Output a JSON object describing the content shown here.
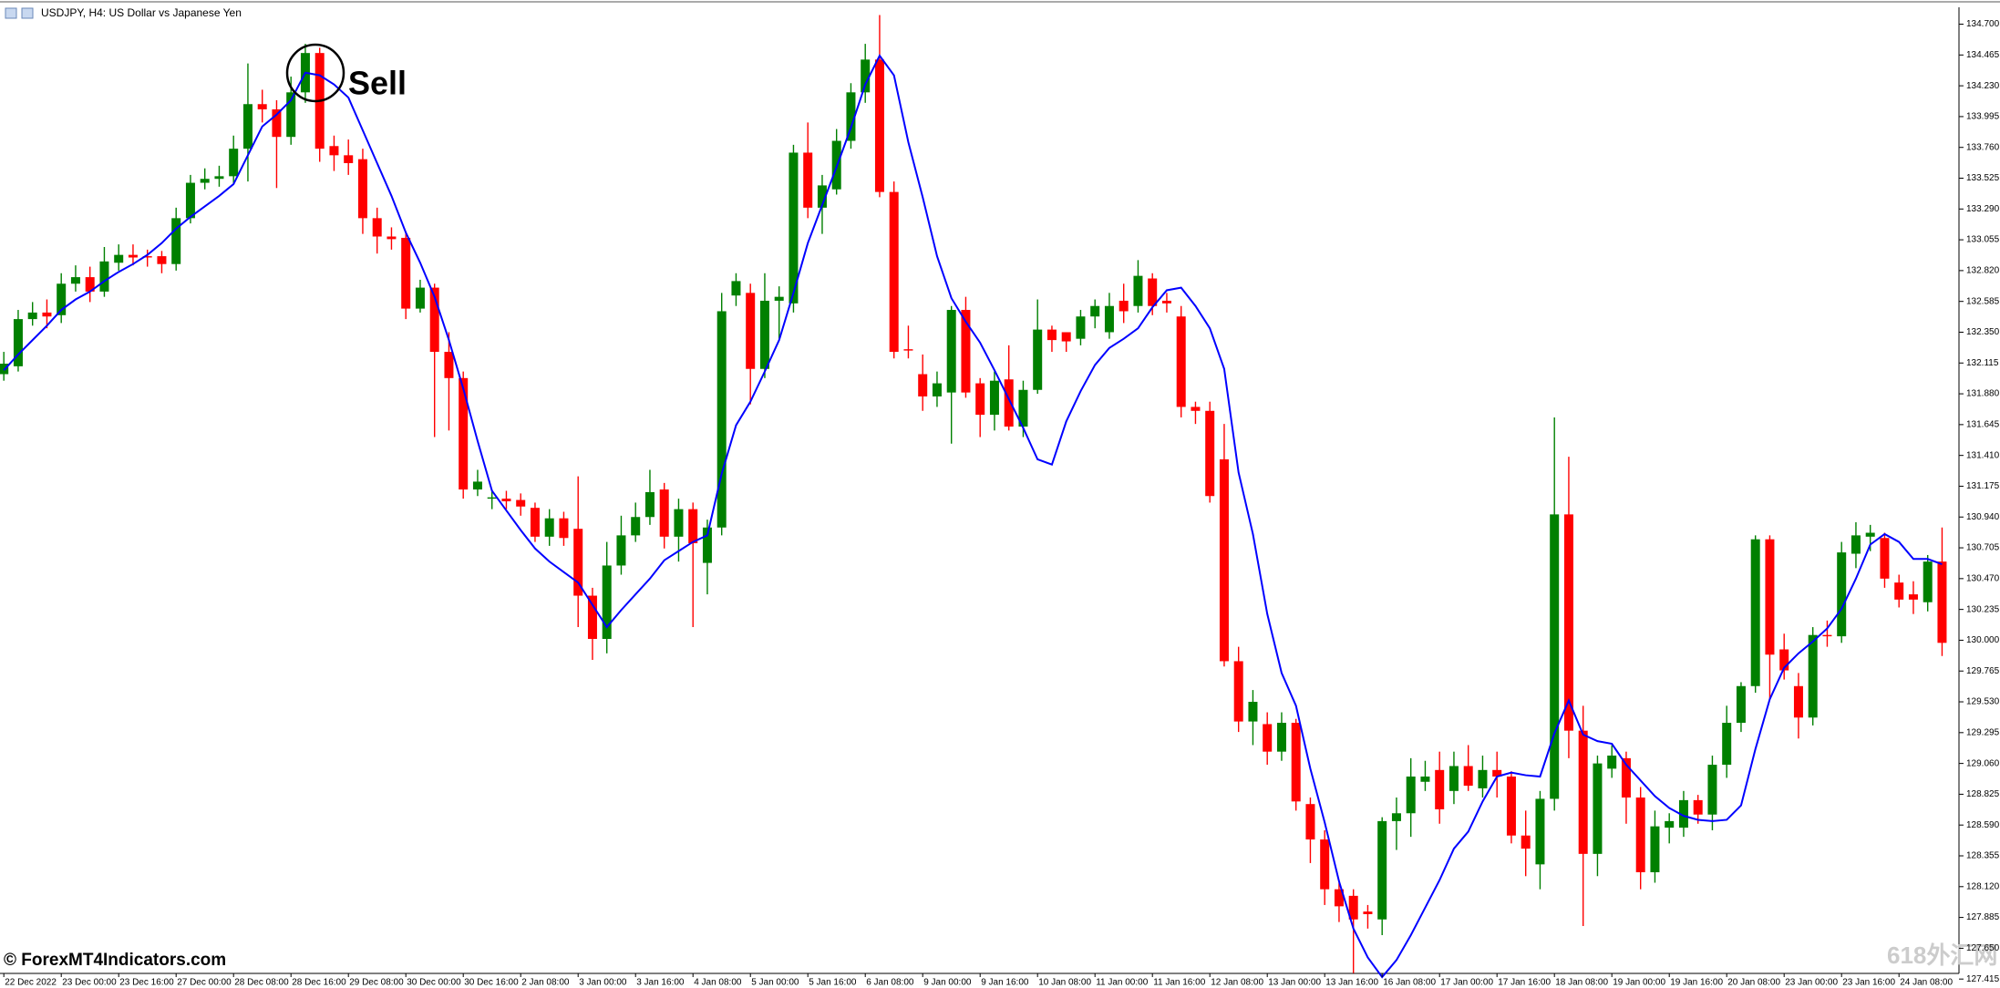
{
  "chart_data": {
    "type": "candlestick",
    "title": "USDJPY, H4:  US Dollar vs Japanese Yen",
    "annotation": "Sell",
    "copyright": "© ForexMT4Indicators.com",
    "watermark": "618外汇网",
    "up_color": "#008000",
    "down_color": "#ff0000",
    "grid": false,
    "categories": [
      "22 Dec 2022",
      null,
      null,
      null,
      "23 Dec 00:00",
      null,
      null,
      null,
      "23 Dec 16:00",
      null,
      null,
      null,
      "27 Dec 00:00",
      null,
      null,
      null,
      "28 Dec 08:00",
      null,
      null,
      null,
      "28 Dec 16:00",
      null,
      null,
      null,
      "29 Dec 08:00",
      null,
      null,
      null,
      "30 Dec 00:00",
      null,
      null,
      null,
      "30 Dec 16:00",
      null,
      null,
      null,
      "2 Jan 08:00",
      null,
      null,
      null,
      "3 Jan 00:00",
      null,
      null,
      null,
      "3 Jan 16:00",
      null,
      null,
      null,
      "4 Jan 08:00",
      null,
      null,
      null,
      "5 Jan 00:00",
      null,
      null,
      null,
      "5 Jan 16:00",
      null,
      null,
      null,
      "6 Jan 08:00",
      null,
      null,
      null,
      "9 Jan 00:00",
      null,
      null,
      null,
      "9 Jan 16:00",
      null,
      null,
      null,
      "10 Jan 08:00",
      null,
      null,
      null,
      "11 Jan 00:00",
      null,
      null,
      null,
      "11 Jan 16:00",
      null,
      null,
      null,
      "12 Jan 08:00",
      null,
      null,
      null,
      "13 Jan 00:00",
      null,
      null,
      null,
      "13 Jan 16:00",
      null,
      null,
      null,
      "16 Jan 08:00",
      null,
      null,
      null,
      "17 Jan 00:00",
      null,
      null,
      null,
      "17 Jan 16:00",
      null,
      null,
      null,
      "18 Jan 08:00",
      null,
      null,
      null,
      "19 Jan 00:00",
      null,
      null,
      null,
      "19 Jan 16:00",
      null,
      null,
      null,
      "20 Jan 08:00",
      null,
      null,
      null,
      "23 Jan 00:00",
      null,
      null,
      null,
      "23 Jan 16:00",
      null,
      null,
      null,
      "24 Jan 08:00",
      null,
      null,
      null
    ],
    "open": [
      132.03,
      132.09,
      132.45,
      132.5,
      132.48,
      132.72,
      132.77,
      132.66,
      132.88,
      132.94,
      132.93,
      132.93,
      132.87,
      133.22,
      133.49,
      133.52,
      133.54,
      133.75,
      134.09,
      134.05,
      133.84,
      134.18,
      134.48,
      133.77,
      133.7,
      133.67,
      133.22,
      133.08,
      133.07,
      132.53,
      132.69,
      132.2,
      132.0,
      131.15,
      131.08,
      131.08,
      131.07,
      131.01,
      130.79,
      130.93,
      130.85,
      130.34,
      130.01,
      130.57,
      130.8,
      130.94,
      131.15,
      130.79,
      131.0,
      130.59,
      130.86,
      132.63,
      132.65,
      132.07,
      132.59,
      132.57,
      133.72,
      133.3,
      133.44,
      133.81,
      134.18,
      134.43,
      133.42,
      132.22,
      132.03,
      131.86,
      131.89,
      132.52,
      131.96,
      131.72,
      131.99,
      131.63,
      131.91,
      132.37,
      132.35,
      132.3,
      132.47,
      132.35,
      132.59,
      132.55,
      132.76,
      132.59,
      132.47,
      131.78,
      131.75,
      131.38,
      129.84,
      129.38,
      129.36,
      129.15,
      129.37,
      128.75,
      128.48,
      128.1,
      128.05,
      127.93,
      127.87,
      128.62,
      128.68,
      128.92,
      129.01,
      128.85,
      129.04,
      128.87,
      129.01,
      128.96,
      128.51,
      128.29,
      128.79,
      130.96,
      129.31,
      128.37,
      129.02,
      129.1,
      128.8,
      128.23,
      128.57,
      128.57,
      128.78,
      128.67,
      129.05,
      129.37,
      129.65,
      130.77,
      129.93,
      129.65,
      129.41,
      130.04,
      130.03,
      130.66,
      130.79,
      130.78,
      130.44,
      130.35,
      130.29,
      130.6
    ],
    "high": [
      132.2,
      132.52,
      132.58,
      132.6,
      132.8,
      132.86,
      132.85,
      133.0,
      133.02,
      133.02,
      132.98,
      132.97,
      133.3,
      133.55,
      133.6,
      133.62,
      133.85,
      134.4,
      134.2,
      134.12,
      134.3,
      134.55,
      134.52,
      133.85,
      133.82,
      133.75,
      133.3,
      133.15,
      133.12,
      132.75,
      132.72,
      132.35,
      132.05,
      131.3,
      131.15,
      131.14,
      131.12,
      131.05,
      131.0,
      130.98,
      131.25,
      130.4,
      130.75,
      130.95,
      131.05,
      131.3,
      131.2,
      131.08,
      131.05,
      130.92,
      132.65,
      132.8,
      132.72,
      132.8,
      132.7,
      133.78,
      133.95,
      133.55,
      133.9,
      134.25,
      134.55,
      134.77,
      133.5,
      132.4,
      132.18,
      132.05,
      132.55,
      132.62,
      132.0,
      132.05,
      132.25,
      131.98,
      132.6,
      132.4,
      132.35,
      132.52,
      132.6,
      132.65,
      132.72,
      132.9,
      132.8,
      132.65,
      132.55,
      131.82,
      131.82,
      131.65,
      129.95,
      129.62,
      129.45,
      129.45,
      129.4,
      128.8,
      128.55,
      128.15,
      128.1,
      127.98,
      128.65,
      128.8,
      129.1,
      129.08,
      129.15,
      129.15,
      129.2,
      129.12,
      129.15,
      129.0,
      128.7,
      128.85,
      131.7,
      131.4,
      129.5,
      129.12,
      129.2,
      129.15,
      128.88,
      128.7,
      128.68,
      128.85,
      128.82,
      129.12,
      129.5,
      129.68,
      130.8,
      130.8,
      130.05,
      129.75,
      130.1,
      130.15,
      130.75,
      130.9,
      130.88,
      130.82,
      130.5,
      130.45,
      130.65,
      130.86
    ],
    "low": [
      131.98,
      132.05,
      132.4,
      132.38,
      132.42,
      132.66,
      132.58,
      132.62,
      132.82,
      132.86,
      132.85,
      132.8,
      132.82,
      133.18,
      133.44,
      133.46,
      133.48,
      133.5,
      133.95,
      133.45,
      133.78,
      134.1,
      133.65,
      133.58,
      133.55,
      133.1,
      132.95,
      132.98,
      132.45,
      132.5,
      131.55,
      131.6,
      131.08,
      131.1,
      131.0,
      131.0,
      130.95,
      130.75,
      130.72,
      130.72,
      130.1,
      129.85,
      129.9,
      130.5,
      130.75,
      130.88,
      130.7,
      130.6,
      130.1,
      130.35,
      130.8,
      132.55,
      131.8,
      132.0,
      132.3,
      132.5,
      133.22,
      133.1,
      133.4,
      133.75,
      134.1,
      133.38,
      132.15,
      132.15,
      131.75,
      131.78,
      131.5,
      131.85,
      131.55,
      131.6,
      131.6,
      131.55,
      131.88,
      132.2,
      132.2,
      132.25,
      132.38,
      132.3,
      132.42,
      132.5,
      132.48,
      132.5,
      131.7,
      131.65,
      131.05,
      129.8,
      129.3,
      129.2,
      129.05,
      129.08,
      128.7,
      128.3,
      127.98,
      127.85,
      127.46,
      127.8,
      127.75,
      128.4,
      128.5,
      128.85,
      128.6,
      128.75,
      128.85,
      128.8,
      128.8,
      128.45,
      128.2,
      128.1,
      128.7,
      129.1,
      127.82,
      128.2,
      128.95,
      128.6,
      128.1,
      128.15,
      128.45,
      128.5,
      128.6,
      128.55,
      128.95,
      129.3,
      129.6,
      129.55,
      129.7,
      129.25,
      129.35,
      129.95,
      129.98,
      130.55,
      130.68,
      130.4,
      130.25,
      130.2,
      130.22,
      129.88
    ],
    "close": [
      132.11,
      132.45,
      132.5,
      132.47,
      132.72,
      132.77,
      132.66,
      132.89,
      132.94,
      132.92,
      132.92,
      132.87,
      133.22,
      133.49,
      133.52,
      133.54,
      133.75,
      134.09,
      134.05,
      133.84,
      134.18,
      134.48,
      133.75,
      133.7,
      133.64,
      133.22,
      133.08,
      133.06,
      132.53,
      132.69,
      132.2,
      132.0,
      131.15,
      131.21,
      131.09,
      131.06,
      131.02,
      130.79,
      130.93,
      130.78,
      130.34,
      130.01,
      130.57,
      130.8,
      130.94,
      131.13,
      130.79,
      131.0,
      130.74,
      130.86,
      132.51,
      132.74,
      132.07,
      132.59,
      132.62,
      133.72,
      133.3,
      133.47,
      133.81,
      134.18,
      134.43,
      133.42,
      132.2,
      132.21,
      131.86,
      131.96,
      132.52,
      131.89,
      131.72,
      131.98,
      131.63,
      131.91,
      132.37,
      132.29,
      132.28,
      132.47,
      132.55,
      132.55,
      132.51,
      132.78,
      132.55,
      132.57,
      131.78,
      131.75,
      131.1,
      129.84,
      129.38,
      129.53,
      129.15,
      129.37,
      128.77,
      128.48,
      128.1,
      127.97,
      127.87,
      127.91,
      128.62,
      128.68,
      128.96,
      128.96,
      128.71,
      129.04,
      128.89,
      129.01,
      128.96,
      128.51,
      128.41,
      128.79,
      130.96,
      129.31,
      128.37,
      129.06,
      129.12,
      128.8,
      128.23,
      128.58,
      128.62,
      128.78,
      128.67,
      129.05,
      129.37,
      129.65,
      130.77,
      129.89,
      129.77,
      129.41,
      130.04,
      130.03,
      130.67,
      130.8,
      130.82,
      130.47,
      130.31,
      130.31,
      130.6,
      129.98
    ],
    "line": {
      "color": "#0000ff",
      "values": [
        132.06,
        132.18,
        132.29,
        132.4,
        132.52,
        132.6,
        132.66,
        132.74,
        132.81,
        132.87,
        132.94,
        133.03,
        133.14,
        133.23,
        133.31,
        133.39,
        133.48,
        133.7,
        133.92,
        134.01,
        134.12,
        134.33,
        134.31,
        134.24,
        134.14,
        133.89,
        133.64,
        133.39,
        133.11,
        132.88,
        132.62,
        132.29,
        131.92,
        131.52,
        131.14,
        130.99,
        130.84,
        130.7,
        130.6,
        130.52,
        130.44,
        130.27,
        130.1,
        130.23,
        130.35,
        130.47,
        130.61,
        130.68,
        130.75,
        130.8,
        131.27,
        131.64,
        131.82,
        132.05,
        132.29,
        132.65,
        133.03,
        133.32,
        133.61,
        133.91,
        134.24,
        134.46,
        134.31,
        133.8,
        133.38,
        132.93,
        132.61,
        132.43,
        132.27,
        132.06,
        131.84,
        131.62,
        131.38,
        131.34,
        131.67,
        131.9,
        132.1,
        132.23,
        132.3,
        132.38,
        132.54,
        132.67,
        132.69,
        132.55,
        132.38,
        132.07,
        131.28,
        130.81,
        130.2,
        129.75,
        129.5,
        129.02,
        128.61,
        128.16,
        127.8,
        127.58,
        127.43,
        127.56,
        127.75,
        127.96,
        128.17,
        128.41,
        128.54,
        128.77,
        128.96,
        128.99,
        128.97,
        128.96,
        129.29,
        129.54,
        129.28,
        129.23,
        129.21,
        129.05,
        128.93,
        128.81,
        128.72,
        128.66,
        128.63,
        128.62,
        128.63,
        128.74,
        129.17,
        129.55,
        129.79,
        129.9,
        129.99,
        130.09,
        130.24,
        130.47,
        130.73,
        130.81,
        130.75,
        130.62,
        130.62,
        130.58
      ]
    },
    "ylim": [
      127.458,
      134.808
    ],
    "yticks": [
      {
        "value": 134.7,
        "label": "134.700"
      },
      {
        "value": 134.465,
        "label": "134.465"
      },
      {
        "value": 134.23,
        "label": "134.230"
      },
      {
        "value": 133.995,
        "label": "133.995"
      },
      {
        "value": 133.76,
        "label": "133.760"
      },
      {
        "value": 133.525,
        "label": "133.525"
      },
      {
        "value": 133.29,
        "label": "133.290"
      },
      {
        "value": 133.055,
        "label": "133.055"
      },
      {
        "value": 132.82,
        "label": "132.820"
      },
      {
        "value": 132.585,
        "label": "132.585"
      },
      {
        "value": 132.35,
        "label": "132.350"
      },
      {
        "value": 132.115,
        "label": "132.115"
      },
      {
        "value": 131.88,
        "label": "131.880"
      },
      {
        "value": 131.645,
        "label": "131.645"
      },
      {
        "value": 131.41,
        "label": "131.410"
      },
      {
        "value": 131.175,
        "label": "131.175"
      },
      {
        "value": 130.94,
        "label": "130.940"
      },
      {
        "value": 130.705,
        "label": "130.705"
      },
      {
        "value": 130.47,
        "label": "130.470"
      },
      {
        "value": 130.235,
        "label": "130.235"
      },
      {
        "value": 130,
        "label": "130.000"
      },
      {
        "value": 129.765,
        "label": "129.765"
      },
      {
        "value": 129.53,
        "label": "129.530"
      },
      {
        "value": 129.295,
        "label": "129.295"
      },
      {
        "value": 129.06,
        "label": "129.060"
      },
      {
        "value": 128.825,
        "label": "128.825"
      },
      {
        "value": 128.59,
        "label": "128.590"
      },
      {
        "value": 128.355,
        "label": "128.355"
      },
      {
        "value": 128.12,
        "label": "128.120"
      },
      {
        "value": 127.885,
        "label": "127.885"
      },
      {
        "value": 127.65,
        "label": "127.650"
      },
      {
        "value": 127.415,
        "label": "127.415"
      }
    ]
  }
}
